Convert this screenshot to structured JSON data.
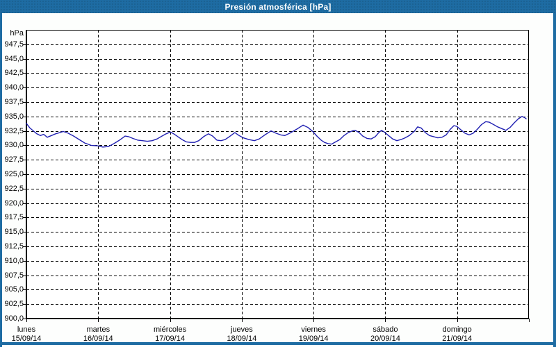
{
  "window": {
    "title": "Presión atmosférica [hPa]",
    "colors": {
      "titlebar": "#1E6CA3",
      "border": "#1E6CA3",
      "content_bg": "#FDFEFD",
      "plot_bg": "#FFFFFF",
      "grid": "#000000",
      "axis": "#000000",
      "line": "#2121B2",
      "title_text": "#FFFFFF",
      "label_text": "#000000"
    }
  },
  "chart_data": {
    "type": "line",
    "title": "Presión atmosférica [hPa]",
    "ylabel": "hPa",
    "xlabel": "",
    "ylim": [
      900,
      950
    ],
    "ytick_step": 2.5,
    "ytick_labels": [
      "947,5",
      "945,0",
      "942,5",
      "940,0",
      "937,5",
      "935,0",
      "932,5",
      "930,0",
      "927,5",
      "925,0",
      "922,5",
      "920,0",
      "917,5",
      "915,0",
      "912,5",
      "910,0",
      "907,5",
      "905,0",
      "902,5",
      "900,0"
    ],
    "grid": "dashed",
    "legend_position": "none",
    "x_days": [
      {
        "name": "lunes",
        "date": "15/09/14"
      },
      {
        "name": "martes",
        "date": "16/09/14"
      },
      {
        "name": "miércoles",
        "date": "17/09/14"
      },
      {
        "name": "jueves",
        "date": "18/09/14"
      },
      {
        "name": "viernes",
        "date": "19/09/14"
      },
      {
        "name": "sábado",
        "date": "20/09/14"
      },
      {
        "name": "domingo",
        "date": "21/09/14"
      }
    ],
    "series": [
      {
        "name": "Presión atmosférica",
        "unit": "hPa",
        "t_days": [
          0.0,
          0.048,
          0.097,
          0.145,
          0.194,
          0.242,
          0.29,
          0.349,
          0.407,
          0.465,
          0.513,
          0.581,
          0.658,
          0.736,
          0.813,
          0.9,
          0.997,
          1.065,
          1.142,
          1.22,
          1.297,
          1.375,
          1.423,
          1.481,
          1.549,
          1.617,
          1.684,
          1.752,
          1.82,
          1.888,
          1.946,
          2.004,
          2.052,
          2.11,
          2.168,
          2.227,
          2.285,
          2.343,
          2.401,
          2.469,
          2.536,
          2.595,
          2.653,
          2.711,
          2.769,
          2.827,
          2.904,
          2.963,
          3.021,
          3.098,
          3.176,
          3.243,
          3.321,
          3.408,
          3.476,
          3.543,
          3.601,
          3.669,
          3.766,
          3.853,
          3.921,
          3.989,
          4.047,
          4.105,
          4.153,
          4.202,
          4.25,
          4.308,
          4.366,
          4.425,
          4.483,
          4.541,
          4.579,
          4.637,
          4.686,
          4.744,
          4.802,
          4.86,
          4.908,
          4.947,
          4.986,
          5.044,
          5.102,
          5.16,
          5.218,
          5.276,
          5.334,
          5.402,
          5.45,
          5.499,
          5.557,
          5.615,
          5.673,
          5.731,
          5.789,
          5.847,
          5.906,
          5.954,
          5.993,
          6.051,
          6.109,
          6.167,
          6.225,
          6.283,
          6.341,
          6.399,
          6.448,
          6.506,
          6.564,
          6.622,
          6.68,
          6.738,
          6.796,
          6.854,
          6.903,
          6.941,
          6.961
        ],
        "values": [
          933.8,
          933.0,
          932.5,
          932.0,
          931.7,
          931.9,
          931.4,
          931.7,
          932.0,
          932.2,
          932.4,
          932.1,
          931.6,
          931.0,
          930.4,
          930.0,
          929.9,
          929.7,
          929.8,
          930.3,
          930.9,
          931.6,
          931.5,
          931.2,
          930.9,
          930.8,
          930.7,
          930.8,
          931.1,
          931.6,
          932.0,
          932.3,
          932.0,
          931.5,
          931.0,
          930.6,
          930.5,
          930.5,
          930.8,
          931.5,
          932.0,
          931.6,
          930.9,
          930.8,
          931.0,
          931.5,
          932.2,
          931.7,
          931.3,
          931.0,
          930.8,
          931.1,
          931.8,
          932.5,
          932.1,
          931.8,
          931.7,
          932.1,
          932.8,
          933.5,
          933.1,
          932.4,
          931.6,
          930.9,
          930.5,
          930.3,
          930.2,
          930.6,
          931.0,
          931.7,
          932.2,
          932.5,
          932.6,
          932.2,
          931.6,
          931.2,
          931.1,
          931.5,
          932.2,
          932.6,
          932.3,
          931.7,
          931.1,
          930.8,
          931.0,
          931.3,
          931.7,
          932.4,
          933.2,
          933.0,
          932.2,
          931.7,
          931.5,
          931.3,
          931.4,
          931.8,
          932.8,
          933.4,
          933.3,
          932.7,
          932.1,
          931.8,
          932.1,
          932.8,
          933.6,
          934.1,
          934.0,
          933.6,
          933.2,
          932.9,
          932.6,
          933.1,
          933.9,
          934.6,
          935.0,
          934.8,
          934.6
        ]
      }
    ]
  }
}
